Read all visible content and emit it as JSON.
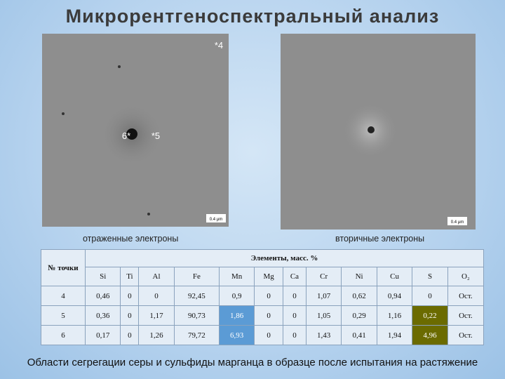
{
  "header": {
    "title": "Микрорентгеноспектральный анализ"
  },
  "images": [
    {
      "caption": "отраженные электроны",
      "labels": [
        "*4",
        "6*",
        "*5"
      ],
      "scale": "0.4 μm"
    },
    {
      "caption": "вторичные электроны",
      "scale": "0.4 μm"
    }
  ],
  "table": {
    "point_header": "№ точки",
    "group_header": "Элементы, масс. %",
    "columns": [
      "Si",
      "Ti",
      "Al",
      "Fe",
      "Mn",
      "Mg",
      "Ca",
      "Cr",
      "Ni",
      "Cu",
      "S",
      "O₂"
    ],
    "rows": [
      [
        "4",
        "0,46",
        "0",
        "0",
        "92,45",
        "0,9",
        "0",
        "0",
        "1,07",
        "0,62",
        "0,94",
        "0",
        "Ост."
      ],
      [
        "5",
        "0,36",
        "0",
        "1,17",
        "90,73",
        "1,86",
        "0",
        "0",
        "1,05",
        "0,29",
        "1,16",
        "0,22",
        "Ост."
      ],
      [
        "6",
        "0,17",
        "0",
        "1,26",
        "79,72",
        "6,93",
        "0",
        "0",
        "1,43",
        "0,41",
        "1,94",
        "4,96",
        "Ост."
      ]
    ]
  },
  "footer": "Области сегрегации серы и сульфиды марганца  в образце после испытания на растяжение"
}
